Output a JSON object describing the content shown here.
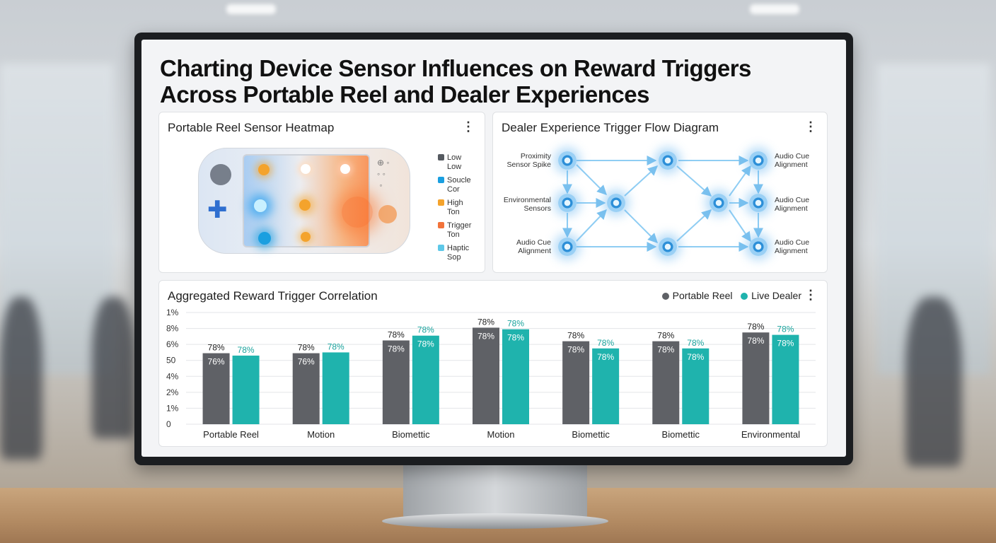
{
  "title_line1": "Charting Device Sensor Influences on Reward Triggers",
  "title_line2": "Across Portable Reel and Dealer Experiences",
  "heatmap": {
    "title": "Portable Reel Sensor Heatmap",
    "legend": [
      {
        "l1": "Low",
        "l2": "Low",
        "color": "#555a60"
      },
      {
        "l1": "Soucle",
        "l2": "Cor",
        "color": "#1a9fe0"
      },
      {
        "l1": "High",
        "l2": "Ton",
        "color": "#f4a32c"
      },
      {
        "l1": "Trigger",
        "l2": "Ton",
        "color": "#f2733a"
      },
      {
        "l1": "Haptic",
        "l2": "Sop",
        "color": "#5ec8e8"
      }
    ]
  },
  "flow": {
    "title": "Dealer Experience Trigger Flow Diagram",
    "labels": {
      "left1a": "Proximity",
      "left1b": "Sensor Spike",
      "left2a": "Environmental",
      "left2b": "Sensors",
      "left3a": "Audio Cue",
      "left3b": "Alignment",
      "right1a": "Audio Cue",
      "right1b": "Alignment",
      "right2a": "Audio Cue",
      "right2b": "Alignment",
      "right3a": "Audio Cue",
      "right3b": "Alignment"
    }
  },
  "bar_panel": {
    "title": "Aggregated Reward Trigger Correlation",
    "legend_portable": "Portable Reel",
    "legend_dealer": "Live Dealer"
  },
  "chart_data": {
    "type": "bar",
    "title": "Aggregated Reward Trigger Correlation",
    "y_tick_labels": [
      "0",
      "1%",
      "2%",
      "4%",
      "50",
      "6%",
      "8%",
      "1%"
    ],
    "y_tick_values": [
      0,
      1,
      2,
      3,
      4,
      5,
      6,
      7
    ],
    "ylim": [
      0,
      7
    ],
    "grid": true,
    "legend_position": "top-right",
    "categories": [
      "Portable Reel",
      "Motion",
      "Biomettic",
      "Motion",
      "Biomettic",
      "Biomettic",
      "Environmental"
    ],
    "series": [
      {
        "name": "Portable Reel",
        "color": "#5f6166",
        "values": [
          4.45,
          4.45,
          5.25,
          6.05,
          5.2,
          5.2,
          5.75
        ],
        "labels_top": [
          "78%",
          "78%",
          "78%",
          "78%",
          "78%",
          "78%",
          "78%"
        ],
        "labels_inner": [
          "76%",
          "76%",
          "78%",
          "78%",
          "78%",
          "78%",
          "78%"
        ]
      },
      {
        "name": "Live Dealer",
        "color": "#1fb3ad",
        "values": [
          4.3,
          4.5,
          5.55,
          5.95,
          4.75,
          4.75,
          5.6
        ],
        "labels_top": [
          "78%",
          "78%",
          "78%",
          "78%",
          "78%",
          "78%",
          "78%"
        ],
        "labels_inner": [
          "",
          "",
          "78%",
          "78%",
          "78%",
          "78%",
          "78%"
        ]
      }
    ]
  }
}
